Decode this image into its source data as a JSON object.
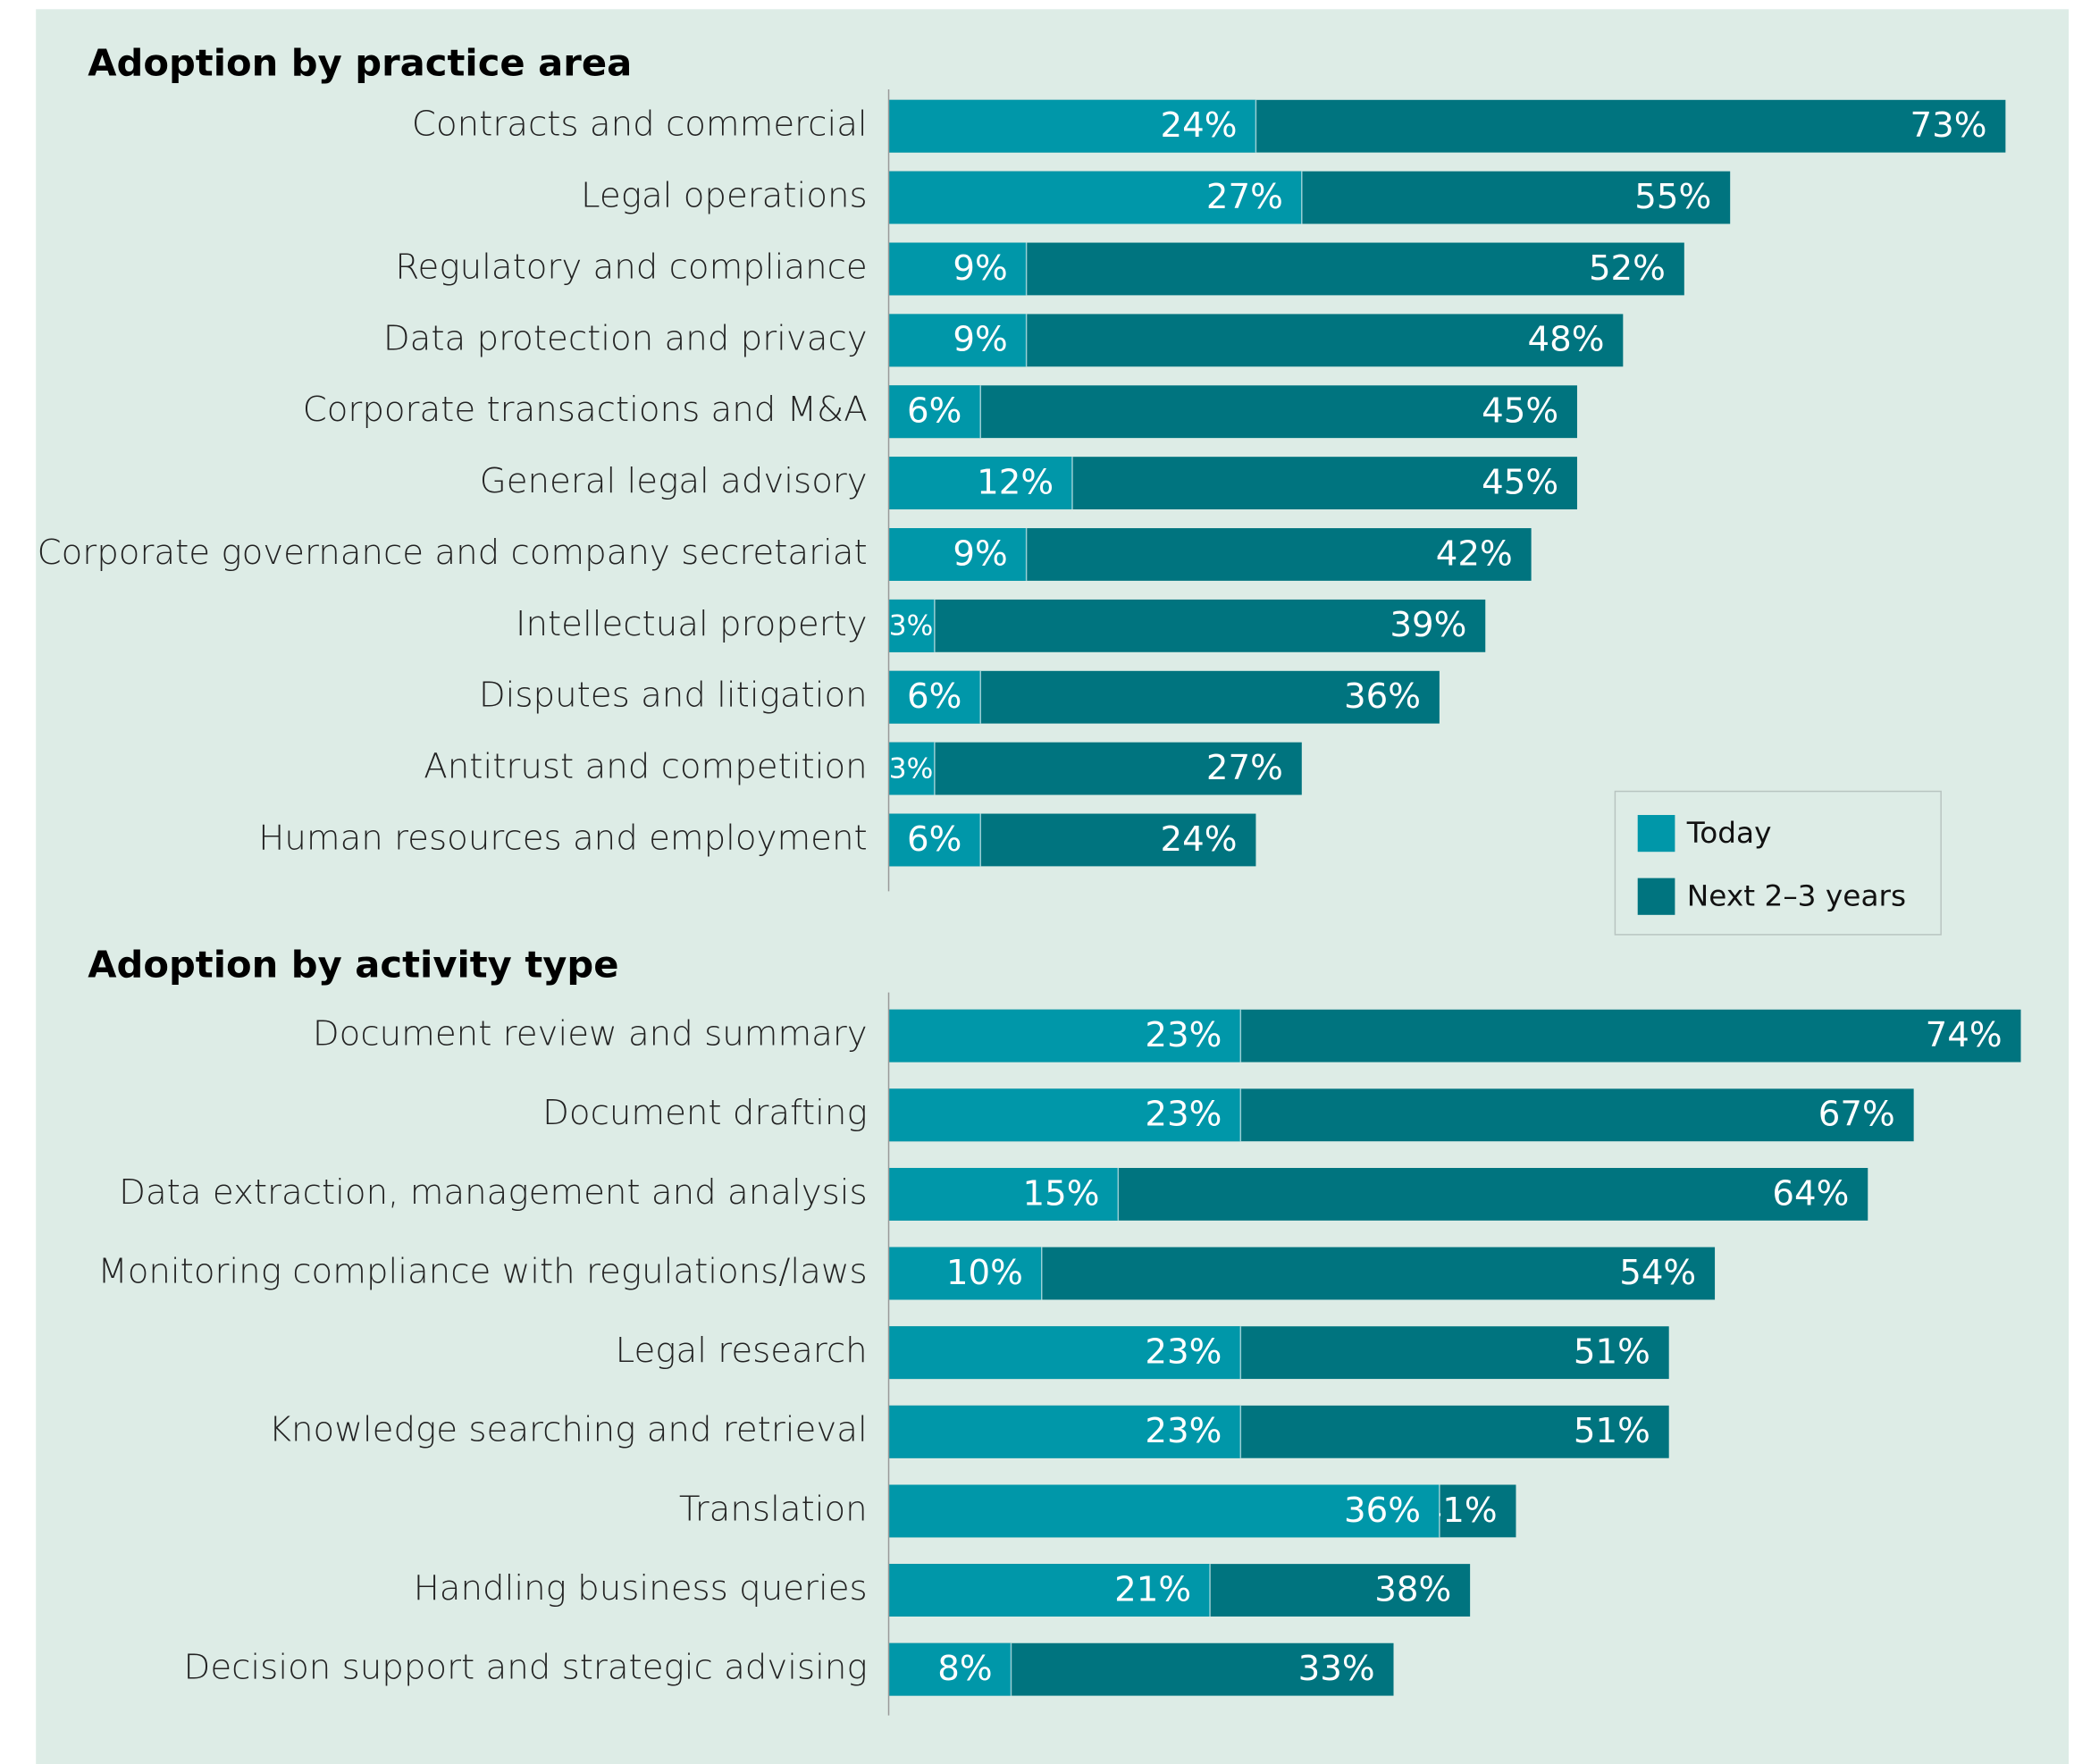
{
  "chart_data": [
    {
      "type": "overlap-bar",
      "title": "Adoption by practice area",
      "categories": [
        "Contracts and commercial",
        "Legal operations",
        "Regulatory and compliance",
        "Data protection and privacy",
        "Corporate transactions and M&A",
        "General legal advisory",
        "Corporate governance and company secretariat",
        "Intellectual property",
        "Disputes and litigation",
        "Antitrust and competition",
        "Human resources and employment"
      ],
      "series": [
        {
          "name": "Today",
          "color": "#0097a9",
          "values": [
            24,
            27,
            9,
            9,
            6,
            12,
            9,
            3,
            6,
            3,
            6
          ],
          "value_labels": [
            "24%",
            "27%",
            "9%",
            "9%",
            "6%",
            "12%",
            "9%",
            "3%",
            "6%",
            "3%",
            "6%"
          ]
        },
        {
          "name": "Next 2–3 years",
          "color": "#00747f",
          "values": [
            73,
            55,
            52,
            48,
            45,
            45,
            42,
            39,
            36,
            27,
            24
          ],
          "value_labels": [
            "73%",
            "55%",
            "52%",
            "48%",
            "45%",
            "45%",
            "42%",
            "39%",
            "36%",
            "27%",
            "24%"
          ]
        }
      ],
      "legend": "right"
    },
    {
      "type": "overlap-bar",
      "title": "Adoption by activity type",
      "categories": [
        "Document review and summary",
        "Document drafting",
        "Data extraction, management and analysis",
        "Monitoring compliance with regulations/laws",
        "Legal research",
        "Knowledge searching and retrieval",
        "Translation",
        "Handling business queries",
        "Decision support and strategic advising"
      ],
      "series": [
        {
          "color": "#0097a9",
          "values": [
            23,
            23,
            15,
            10,
            23,
            23,
            36,
            21,
            8
          ],
          "value_labels": [
            "23%",
            "23%",
            "15%",
            "10%",
            "23%",
            "23%",
            "36%",
            "21%",
            "8%"
          ]
        },
        {
          "color": "#00747f",
          "values": [
            74,
            67,
            64,
            54,
            51,
            51,
            41,
            38,
            33
          ],
          "value_labels": [
            "74%",
            "67%",
            "64%",
            "54%",
            "51%",
            "51%",
            "41%",
            "38%",
            "33%"
          ]
        }
      ]
    }
  ]
}
